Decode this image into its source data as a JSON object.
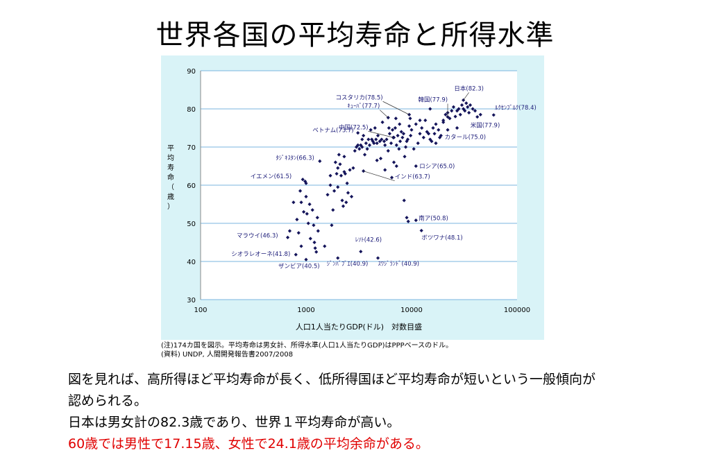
{
  "title": "世界各国の平均寿命と所得水準",
  "notes": {
    "note": "(注)174カ国を図示。平均寿命は男女計、所得水準(人口1人当たりGDP)はPPPベースのドル。",
    "source": "(資料) UNDP, 人間開発報告書2007/2008"
  },
  "body": {
    "line1": "図を見れば、高所得ほど平均寿命が長く、低所得国ほど平均寿命が短いという一般傾向が",
    "line2": "認められる。",
    "line3": "日本は男女計の82.3歳であり、世界１平均寿命が高い。",
    "line4": "60歳では男性で17.15歳、女性で24.1歳の平均余命がある。"
  },
  "colors": {
    "chart_background": "#d9f3f7",
    "plot_background": "#ffffff",
    "gridline": "#7ab6df",
    "marker": "#14145a",
    "highlight_text": "#e00000"
  },
  "chart_data": {
    "type": "scatter",
    "xlabel": "人口1人当たりGDP(ドル)　対数目盛",
    "ylabel": "平均寿命（歳）",
    "x_scale": "log",
    "xlim": [
      100,
      100000
    ],
    "ylim": [
      30,
      90
    ],
    "x_ticks": [
      "100",
      "1000",
      "10000",
      "100000"
    ],
    "y_ticks": [
      "30",
      "40",
      "50",
      "60",
      "70",
      "80",
      "90"
    ],
    "grid": "horizontal",
    "marker": "diamond",
    "labeled_points": [
      {
        "label": "コスタリカ(78.5)",
        "x": 9500,
        "y": 78.5
      },
      {
        "label": "韓国(77.9)",
        "x": 22000,
        "y": 77.9
      },
      {
        "label": "日本(82.3)",
        "x": 31000,
        "y": 82.3
      },
      {
        "label": "ﾙｸｾﾝﾌﾞﾙｸ(78.4)",
        "x": 60000,
        "y": 78.4
      },
      {
        "label": "ｷｭｰﾊﾞ(77.7)",
        "x": 6000,
        "y": 77.7
      },
      {
        "label": "中国(72.5)",
        "x": 6700,
        "y": 72.5
      },
      {
        "label": "米国(77.9)",
        "x": 42000,
        "y": 77.9
      },
      {
        "label": "ベトナム(73.7)",
        "x": 3100,
        "y": 73.7
      },
      {
        "label": "カタール(75.0)",
        "x": 27000,
        "y": 75.0
      },
      {
        "label": "ﾀｼﾞｷｽﾀﾝ(66.3)",
        "x": 1350,
        "y": 66.3
      },
      {
        "label": "ロシア(65.0)",
        "x": 11000,
        "y": 65.0
      },
      {
        "label": "イエメン(61.5)",
        "x": 930,
        "y": 61.5
      },
      {
        "label": "インド(63.7)",
        "x": 3500,
        "y": 63.7
      },
      {
        "label": "南ア(50.8)",
        "x": 11000,
        "y": 50.8
      },
      {
        "label": "マラウイ(46.3)",
        "x": 670,
        "y": 46.3
      },
      {
        "label": "ボツワナ(48.1)",
        "x": 12400,
        "y": 48.1
      },
      {
        "label": "ﾚｿﾄ(42.6)",
        "x": 3300,
        "y": 42.6
      },
      {
        "label": "シオラレオーネ(41.8)",
        "x": 800,
        "y": 41.8
      },
      {
        "label": "ザンビア(40.5)",
        "x": 1000,
        "y": 40.5
      },
      {
        "label": "ｼﾞﾝﾊﾞﾌﾞｴ(40.9)",
        "x": 2000,
        "y": 40.9
      },
      {
        "label": "ｽﾜｼﾞﾗﾝﾄﾞ(40.9)",
        "x": 4800,
        "y": 40.9
      }
    ],
    "points": [
      [
        700,
        48.0
      ],
      [
        850,
        47.5
      ],
      [
        880,
        58.5
      ],
      [
        900,
        55.5
      ],
      [
        950,
        53.0
      ],
      [
        980,
        61.0
      ],
      [
        1000,
        57.0
      ],
      [
        1020,
        52.5
      ],
      [
        1050,
        50.0
      ],
      [
        1080,
        55.0
      ],
      [
        1100,
        46.0
      ],
      [
        1150,
        53.5
      ],
      [
        1180,
        49.5
      ],
      [
        1200,
        45.0
      ],
      [
        1220,
        43.5
      ],
      [
        1250,
        42.5
      ],
      [
        1280,
        51.5
      ],
      [
        1300,
        48.0
      ],
      [
        900,
        44.0
      ],
      [
        760,
        55.5
      ],
      [
        820,
        51.0
      ],
      [
        1000,
        60.5
      ],
      [
        1500,
        44.0
      ],
      [
        1600,
        57.5
      ],
      [
        1700,
        60.0
      ],
      [
        1700,
        62.5
      ],
      [
        1750,
        49.5
      ],
      [
        1800,
        53.5
      ],
      [
        1850,
        58.5
      ],
      [
        1900,
        66.0
      ],
      [
        1950,
        63.0
      ],
      [
        2000,
        64.5
      ],
      [
        2000,
        59.5
      ],
      [
        2050,
        68.0
      ],
      [
        2100,
        65.5
      ],
      [
        2150,
        62.5
      ],
      [
        2200,
        56.0
      ],
      [
        2250,
        54.5
      ],
      [
        2300,
        67.5
      ],
      [
        2350,
        63.0
      ],
      [
        2400,
        55.5
      ],
      [
        2450,
        60.5
      ],
      [
        2500,
        58.0
      ],
      [
        2700,
        57.0
      ],
      [
        2800,
        64.5
      ],
      [
        2900,
        69.0
      ],
      [
        3000,
        70.0
      ],
      [
        3100,
        70.5
      ],
      [
        3200,
        69.5
      ],
      [
        3300,
        70.5
      ],
      [
        3400,
        72.0
      ],
      [
        3500,
        73.0
      ],
      [
        3600,
        68.0
      ],
      [
        3700,
        71.0
      ],
      [
        3800,
        69.5
      ],
      [
        4000,
        70.5
      ],
      [
        4100,
        74.5
      ],
      [
        4200,
        72.0
      ],
      [
        4300,
        71.5
      ],
      [
        4400,
        71.0
      ],
      [
        4500,
        75.0
      ],
      [
        4600,
        72.0
      ],
      [
        4700,
        71.0
      ],
      [
        4800,
        73.0
      ],
      [
        5000,
        71.5
      ],
      [
        5200,
        72.0
      ],
      [
        5300,
        76.5
      ],
      [
        5500,
        71.5
      ],
      [
        5600,
        70.5
      ],
      [
        5800,
        72.0
      ],
      [
        6000,
        69.0
      ],
      [
        6200,
        73.5
      ],
      [
        6400,
        71.0
      ],
      [
        6600,
        74.5
      ],
      [
        6800,
        72.5
      ],
      [
        7000,
        75.0
      ],
      [
        7200,
        70.5
      ],
      [
        7400,
        73.0
      ],
      [
        7600,
        69.5
      ],
      [
        7800,
        71.5
      ],
      [
        8000,
        74.0
      ],
      [
        8200,
        72.5
      ],
      [
        8400,
        73.5
      ],
      [
        8600,
        67.5
      ],
      [
        8800,
        70.0
      ],
      [
        9000,
        71.5
      ],
      [
        9200,
        72.0
      ],
      [
        9500,
        75.5
      ],
      [
        9800,
        73.0
      ],
      [
        10000,
        74.5
      ],
      [
        10500,
        69.5
      ],
      [
        11000,
        76.0
      ],
      [
        11500,
        71.0
      ],
      [
        12000,
        73.5
      ],
      [
        12500,
        75.0
      ],
      [
        13000,
        72.5
      ],
      [
        13500,
        77.0
      ],
      [
        14000,
        74.0
      ],
      [
        15000,
        72.0
      ],
      [
        15500,
        71.5
      ],
      [
        16000,
        75.0
      ],
      [
        17000,
        71.0
      ],
      [
        18000,
        74.5
      ],
      [
        19000,
        73.0
      ],
      [
        20000,
        76.5
      ],
      [
        21000,
        78.5
      ],
      [
        22000,
        79.0
      ],
      [
        23000,
        77.5
      ],
      [
        24000,
        79.5
      ],
      [
        25000,
        80.5
      ],
      [
        26000,
        78.0
      ],
      [
        27000,
        79.5
      ],
      [
        28000,
        80.0
      ],
      [
        29000,
        78.5
      ],
      [
        30000,
        81.0
      ],
      [
        31000,
        80.0
      ],
      [
        32000,
        79.5
      ],
      [
        33000,
        81.5
      ],
      [
        34000,
        80.5
      ],
      [
        35000,
        79.0
      ],
      [
        36000,
        81.0
      ],
      [
        38000,
        80.0
      ],
      [
        40000,
        79.5
      ],
      [
        45000,
        78.5
      ],
      [
        8500,
        56.0
      ],
      [
        9000,
        51.5
      ],
      [
        9300,
        50.5
      ],
      [
        6800,
        66.0
      ],
      [
        7200,
        65.0
      ],
      [
        6500,
        62.0
      ],
      [
        5600,
        64.0
      ],
      [
        5100,
        67.0
      ],
      [
        4700,
        66.5
      ],
      [
        16500,
        73.5
      ],
      [
        18500,
        72.5
      ],
      [
        22000,
        74.5
      ],
      [
        15000,
        80.0
      ],
      [
        20000,
        77.0
      ],
      [
        17000,
        76.0
      ],
      [
        14500,
        73.5
      ],
      [
        12000,
        77.0
      ],
      [
        9700,
        77.5
      ],
      [
        7700,
        76.0
      ],
      [
        7100,
        77.5
      ],
      [
        6100,
        75.0
      ],
      [
        3900,
        72.0
      ],
      [
        3400,
        70.0
      ],
      [
        2600,
        64.0
      ],
      [
        2300,
        63.5
      ]
    ]
  }
}
